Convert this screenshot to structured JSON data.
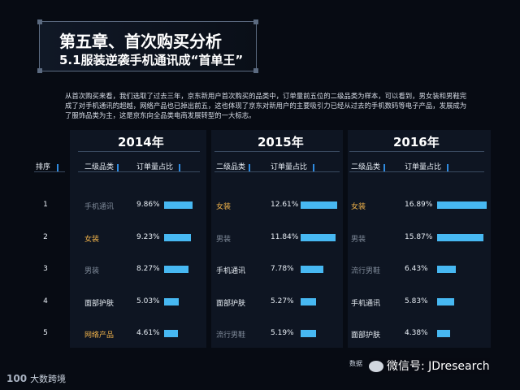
{
  "title": {
    "chapter": "第五章、首次购买分析",
    "section": "5.1服装逆袭手机通讯成“首单王”"
  },
  "intro": "从首次购买来看，我们选取了过去三年，京东新用户首次购买的品类中，订单量前五位的二级品类为样本，可以看到，男女装和男鞋完成了对手机通讯的超越，网络产品也已掉出前五，这也体现了京东对新用户的主要吸引力已经从过去的手机数码等电子产品，发展成为了服饰品类为主，这是京东向全品类电商发展转型的一大标志。",
  "rank_header": "排序",
  "ranks": [
    "1",
    "2",
    "3",
    "4",
    "5"
  ],
  "colors": {
    "bar": "#47b8f2",
    "highlight": "#f0b24a",
    "dim": "#7f8a99",
    "text": "#e8eef5"
  },
  "panels": [
    {
      "year": "2014年",
      "col_category": "二级品类",
      "col_share": "订单量占比",
      "rows": [
        {
          "name": "手机通讯",
          "pct": "9.86%",
          "share": 9.86,
          "style": "dim"
        },
        {
          "name": "女装",
          "pct": "9.23%",
          "share": 9.23,
          "style": "highlight"
        },
        {
          "name": "男装",
          "pct": "8.27%",
          "share": 8.27,
          "style": "dim"
        },
        {
          "name": "面部护肤",
          "pct": "5.03%",
          "share": 5.03,
          "style": "text"
        },
        {
          "name": "网络产品",
          "pct": "4.61%",
          "share": 4.61,
          "style": "highlight"
        }
      ]
    },
    {
      "year": "2015年",
      "col_category": "二级品类",
      "col_share": "订单量占比",
      "rows": [
        {
          "name": "女装",
          "pct": "12.61%",
          "share": 12.61,
          "style": "highlight"
        },
        {
          "name": "男装",
          "pct": "11.84%",
          "share": 11.84,
          "style": "dim"
        },
        {
          "name": "手机通讯",
          "pct": "7.78%",
          "share": 7.78,
          "style": "text"
        },
        {
          "name": "面部护肤",
          "pct": "5.27%",
          "share": 5.27,
          "style": "text"
        },
        {
          "name": "流行男鞋",
          "pct": "5.19%",
          "share": 5.19,
          "style": "dim"
        }
      ]
    },
    {
      "year": "2016年",
      "col_category": "二级品类",
      "col_share": "订单量占比",
      "rows": [
        {
          "name": "女装",
          "pct": "16.89%",
          "share": 16.89,
          "style": "highlight"
        },
        {
          "name": "男装",
          "pct": "15.87%",
          "share": 15.87,
          "style": "dim"
        },
        {
          "name": "流行男鞋",
          "pct": "6.43%",
          "share": 6.43,
          "style": "dim"
        },
        {
          "name": "手机通讯",
          "pct": "5.83%",
          "share": 5.83,
          "style": "text"
        },
        {
          "name": "面部护肤",
          "pct": "4.38%",
          "share": 4.38,
          "style": "text"
        }
      ]
    }
  ],
  "footer": {
    "logo": "100",
    "brand": "大数跨境",
    "source": "数据",
    "wechat": "微信号: JDresearch"
  }
}
